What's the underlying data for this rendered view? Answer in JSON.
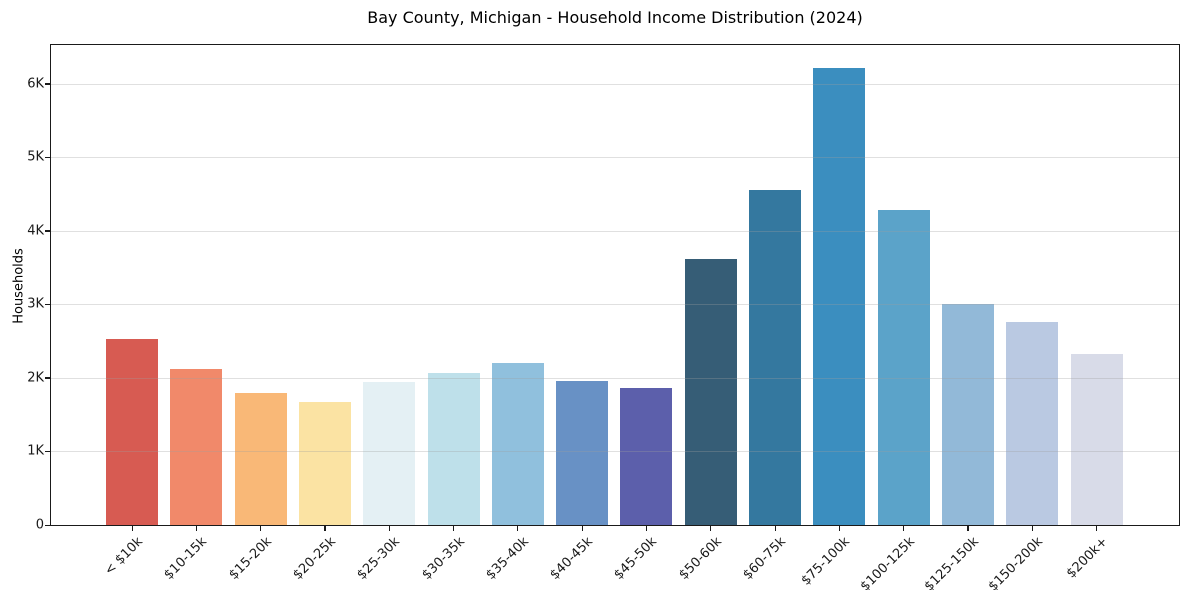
{
  "chart_data": {
    "type": "bar",
    "title": "Bay County, Michigan - Household Income Distribution (2024)",
    "xlabel": "",
    "ylabel": "Households",
    "categories": [
      "< $10k",
      "$10-15k",
      "$15-20k",
      "$20-25k",
      "$25-30k",
      "$30-35k",
      "$35-40k",
      "$40-45k",
      "$45-50k",
      "$50-60k",
      "$60-75k",
      "$75-100k",
      "$100-125k",
      "$125-150k",
      "$150-200k",
      "$200k+"
    ],
    "values": [
      2530,
      2120,
      1800,
      1670,
      1950,
      2070,
      2210,
      1960,
      1860,
      3620,
      4560,
      6220,
      4290,
      3000,
      2760,
      2330
    ],
    "bar_colors": [
      "#d75b52",
      "#f1896a",
      "#f9b877",
      "#fbe3a3",
      "#e4f0f4",
      "#bee0ea",
      "#90c0dd",
      "#6891c5",
      "#5c5fab",
      "#365d76",
      "#34789f",
      "#3b8ebf",
      "#5ba3c9",
      "#92b9d8",
      "#bac9e2",
      "#d8dbe8"
    ],
    "ylim": [
      0,
      6530
    ],
    "yticks": {
      "values": [
        0,
        1000,
        2000,
        3000,
        4000,
        5000,
        6000
      ],
      "labels": [
        "0",
        "1K",
        "2K",
        "3K",
        "4K",
        "5K",
        "6K"
      ]
    },
    "grid": "horizontal-light",
    "legend_position": "none",
    "background_color": "#ffffff",
    "spine_color": "#1a1a1a"
  }
}
